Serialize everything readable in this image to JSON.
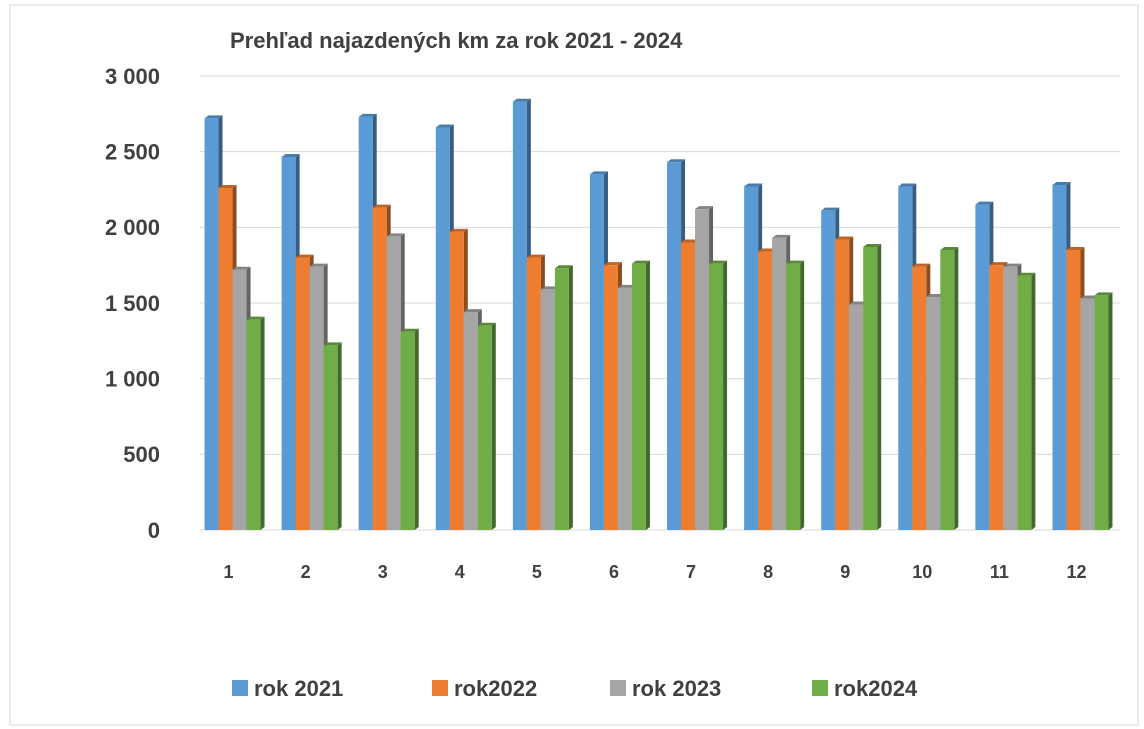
{
  "chart_data": {
    "type": "bar",
    "title": "Prehľad najazdených km za rok 2021 - 2024",
    "categories": [
      "1",
      "2",
      "3",
      "4",
      "5",
      "6",
      "7",
      "8",
      "9",
      "10",
      "11",
      "12"
    ],
    "series": [
      {
        "name": "rok 2021",
        "color": "#5b9bd5",
        "values": [
          2720,
          2465,
          2730,
          2660,
          2830,
          2350,
          2430,
          2270,
          2110,
          2270,
          2150,
          2280
        ]
      },
      {
        "name": "rok2022",
        "color": "#ed7d31",
        "values": [
          2260,
          1800,
          2130,
          1970,
          1800,
          1750,
          1900,
          1840,
          1920,
          1740,
          1750,
          1850
        ]
      },
      {
        "name": "rok 2023",
        "color": "#a5a5a5",
        "values": [
          1720,
          1740,
          1940,
          1440,
          1590,
          1600,
          2120,
          1930,
          1490,
          1540,
          1740,
          1530
        ]
      },
      {
        "name": "rok2024",
        "color": "#70ad47",
        "values": [
          1390,
          1220,
          1310,
          1350,
          1730,
          1760,
          1760,
          1760,
          1870,
          1850,
          1680,
          1550
        ]
      }
    ],
    "ylim": [
      0,
      3000
    ],
    "yticks": [
      0,
      500,
      {
        "value": 1000,
        "label": "1 000"
      },
      {
        "value": 1500,
        "label": "1 500"
      },
      {
        "value": 2000,
        "label": "2 000"
      },
      {
        "value": 2500,
        "label": "2 500"
      },
      {
        "value": 3000,
        "label": "3 000"
      }
    ],
    "grid": true,
    "legend": "bottom"
  }
}
